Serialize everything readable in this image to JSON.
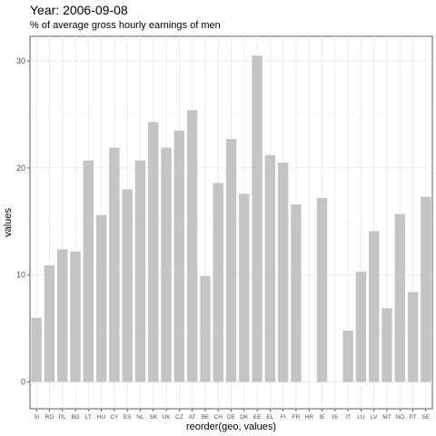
{
  "title": "Year: 2006-09-08",
  "subtitle": "% of average gross hourly earnings of men",
  "chart_data": {
    "type": "bar",
    "xlabel": "reorder(geo, values)",
    "ylabel": "values",
    "ylim": [
      -2.5,
      32.3
    ],
    "yticks": [
      0,
      10,
      20,
      30
    ],
    "grid": true,
    "bar_color": "#c4c4c4",
    "categories": [
      "SI",
      "RO",
      "PL",
      "BG",
      "LT",
      "HU",
      "CY",
      "ES",
      "NL",
      "SK",
      "UK",
      "CZ",
      "AT",
      "BE",
      "CH",
      "DE",
      "DK",
      "EE",
      "EL",
      "FI",
      "FR",
      "HR",
      "IE",
      "IS",
      "IT",
      "LU",
      "LV",
      "MT",
      "NO",
      "PT",
      "SE"
    ],
    "values": [
      6.0,
      10.9,
      12.4,
      12.2,
      20.7,
      15.6,
      21.9,
      18.0,
      20.7,
      24.3,
      21.9,
      23.5,
      25.4,
      9.9,
      18.6,
      22.7,
      17.6,
      30.5,
      21.2,
      20.5,
      16.6,
      0,
      17.2,
      0,
      4.8,
      10.3,
      14.1,
      6.9,
      15.7,
      8.4,
      17.3
    ]
  }
}
